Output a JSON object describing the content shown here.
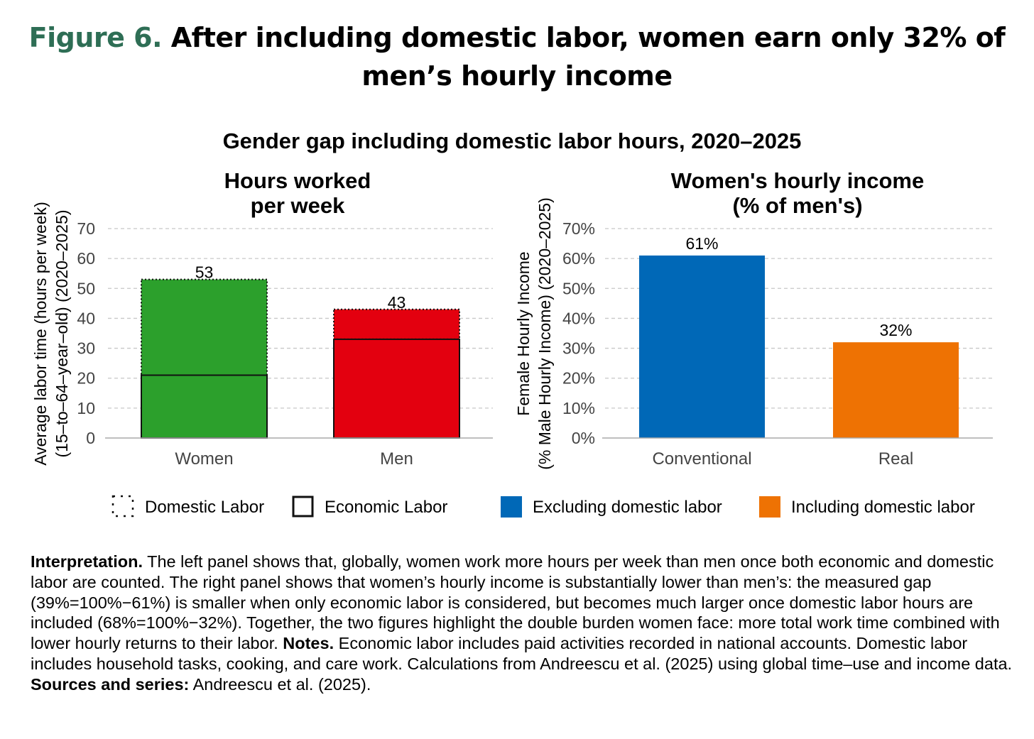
{
  "figure": {
    "label": "Figure 6.",
    "title": "After including domestic labor, women earn only 32% of men’s hourly income"
  },
  "chart_data": [
    {
      "type": "bar",
      "suptitle": "Gender gap including domestic labor hours, 2020–2025",
      "title_lines": [
        "Hours worked",
        "per week"
      ],
      "ylabel_lines": [
        "Average labor time (hours per week)",
        "(15–to–64–year–old) (2020–2025)"
      ],
      "categories": [
        "Women",
        "Men"
      ],
      "series": [
        {
          "name": "Economic Labor",
          "values": [
            21,
            33
          ]
        },
        {
          "name": "Domestic Labor",
          "values": [
            32,
            10
          ]
        }
      ],
      "totals": [
        53,
        43
      ],
      "total_labels": [
        "53",
        "43"
      ],
      "colors": [
        "#2ca02c",
        "#e3000f"
      ],
      "ylim": [
        0,
        70
      ],
      "yticks": [
        0,
        10,
        20,
        30,
        40,
        50,
        60,
        70
      ],
      "ytick_labels": [
        "0",
        "10",
        "20",
        "30",
        "40",
        "50",
        "60",
        "70"
      ],
      "grid": true,
      "legend": [
        "Domestic Labor",
        "Economic Labor"
      ],
      "legend_placement": "bottom"
    },
    {
      "type": "bar",
      "title_lines": [
        "Women's hourly income",
        "(% of men's)"
      ],
      "ylabel_lines": [
        "Female Hourly Income",
        "(% Male Hourly Income) (2020–2025)"
      ],
      "categories": [
        "Conventional",
        "Real"
      ],
      "values": [
        61,
        32
      ],
      "value_labels": [
        "61%",
        "32%"
      ],
      "colors": [
        "#0068b7",
        "#ee7203"
      ],
      "ylim": [
        0,
        70
      ],
      "yticks": [
        0,
        10,
        20,
        30,
        40,
        50,
        60,
        70
      ],
      "ytick_labels": [
        "0%",
        "10%",
        "20%",
        "30%",
        "40%",
        "50%",
        "60%",
        "70%"
      ],
      "grid": true,
      "legend": [
        "Excluding domestic labor",
        "Including domestic labor"
      ],
      "legend_placement": "bottom"
    }
  ],
  "notes": {
    "interpretation_label": "Interpretation.",
    "interpretation_text": " The left panel shows that, globally, women work more hours per week than men once both economic and domestic labor are counted. The right panel shows that women’s hourly income is substantially lower than men’s: the measured gap (39%=100%−61%) is smaller when only economic labor is considered, but becomes much larger once domestic labor hours are included (68%=100%−32%). Together, the two figures highlight the double burden women face: more total work time combined with lower hourly returns to their labor.",
    "notes_label": "Notes.",
    "notes_text": " Economic labor includes paid activities recorded in national accounts. Domestic labor includes household tasks, cooking, and care work. Calculations from Andreescu et al. (2025) using global time–use and income data.",
    "sources_label": "Sources and series:",
    "sources_text": " Andreescu et al. (2025)."
  }
}
